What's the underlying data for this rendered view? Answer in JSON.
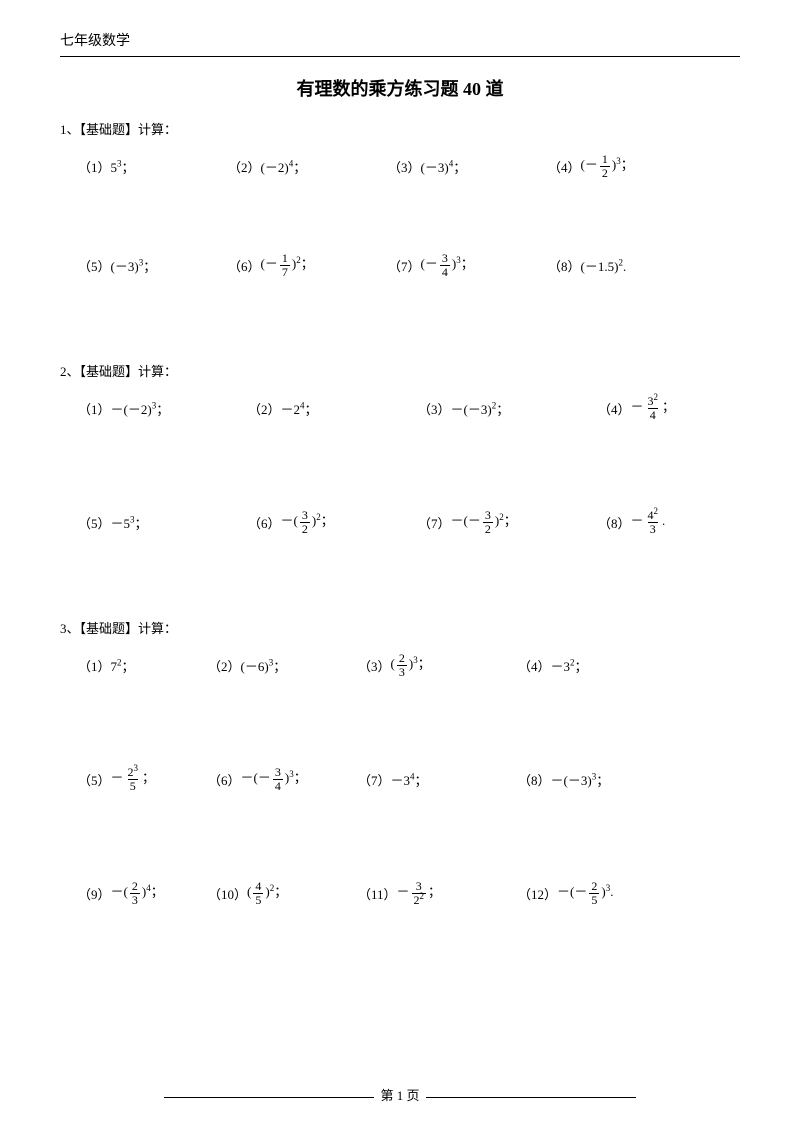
{
  "header": "七年级数学",
  "title": "有理数的乘方练习题 40 道",
  "footer": {
    "label": "第 1 页"
  },
  "sections": [
    {
      "heading": "1、【基础题】计算：",
      "rows": [
        [
          {
            "label": "（1）",
            "expr": "5<sup>3</sup>；"
          },
          {
            "label": "（2）",
            "expr": "(－2)<sup>4</sup>；"
          },
          {
            "label": "（3）",
            "expr": "(－3)<sup>4</sup>；"
          },
          {
            "label": "（4）",
            "expr": "(－<span class=\"frac\"><span class=\"n\">1</span><span class=\"d\">2</span></span>)<sup>3</sup>；"
          }
        ],
        [
          {
            "label": "（5）",
            "expr": "(－3)<sup>3</sup>；"
          },
          {
            "label": "（6）",
            "expr": "(－<span class=\"frac\"><span class=\"n\">1</span><span class=\"d\">7</span></span>)<sup>2</sup>；"
          },
          {
            "label": "（7）",
            "expr": "(－<span class=\"frac\"><span class=\"n\">3</span><span class=\"d\">4</span></span>)<sup>3</sup>；"
          },
          {
            "label": "（8）",
            "expr": "(－1.5)<sup>2</sup>."
          }
        ]
      ]
    },
    {
      "heading": "2、【基础题】计算：",
      "rows": [
        [
          {
            "label": "（1）",
            "expr": "－(－2)<sup>3</sup>；"
          },
          {
            "label": "（2）",
            "expr": "－2<sup>4</sup>；"
          },
          {
            "label": "（3）",
            "expr": "－(－3)<sup>2</sup>；"
          },
          {
            "label": "（4）",
            "expr": "－<span class=\"frac\"><span class=\"n\">3<sup>2</sup></span><span class=\"d\">4</span></span>；"
          }
        ],
        [
          {
            "label": "（5）",
            "expr": "－5<sup>3</sup>；"
          },
          {
            "label": "（6）",
            "expr": "－(<span class=\"frac\"><span class=\"n\">3</span><span class=\"d\">2</span></span>)<sup>2</sup>；"
          },
          {
            "label": "（7）",
            "expr": "－(－<span class=\"frac\"><span class=\"n\">3</span><span class=\"d\">2</span></span>)<sup>2</sup>；"
          },
          {
            "label": "（8）",
            "expr": "－<span class=\"frac\"><span class=\"n\">4<sup>2</sup></span><span class=\"d\">3</span></span>."
          }
        ]
      ]
    },
    {
      "heading": "3、【基础题】计算：",
      "rows": [
        [
          {
            "label": "（1）",
            "expr": "7<sup>2</sup>；"
          },
          {
            "label": "（2）",
            "expr": "(－6)<sup>3</sup>；"
          },
          {
            "label": "（3）",
            "expr": "(<span class=\"frac\"><span class=\"n\">2</span><span class=\"d\">3</span></span>)<sup>3</sup>；"
          },
          {
            "label": "（4）",
            "expr": "－3<sup>2</sup>；"
          }
        ],
        [
          {
            "label": "（5）",
            "expr": "－<span class=\"frac\"><span class=\"n\">2<sup>3</sup></span><span class=\"d\">5</span></span>；"
          },
          {
            "label": "（6）",
            "expr": "－(－<span class=\"frac\"><span class=\"n\">3</span><span class=\"d\">4</span></span>)<sup>3</sup>；"
          },
          {
            "label": "（7）",
            "expr": "－3<sup>4</sup>；"
          },
          {
            "label": "（8）",
            "expr": "－(－3)<sup>3</sup>；"
          }
        ],
        [
          {
            "label": "（9）",
            "expr": "－(<span class=\"frac\"><span class=\"n\">2</span><span class=\"d\">3</span></span>)<sup>4</sup>；"
          },
          {
            "label": "（10）",
            "expr": "(<span class=\"frac\"><span class=\"n\">4</span><span class=\"d\">5</span></span>)<sup>2</sup>；"
          },
          {
            "label": "（11）",
            "expr": "－<span class=\"frac\"><span class=\"n\">3</span><span class=\"d\">2<sup>2</sup></span></span>；"
          },
          {
            "label": "（12）",
            "expr": "－(－<span class=\"frac\"><span class=\"n\">2</span><span class=\"d\">5</span></span>)<sup>3</sup>."
          }
        ]
      ]
    }
  ]
}
